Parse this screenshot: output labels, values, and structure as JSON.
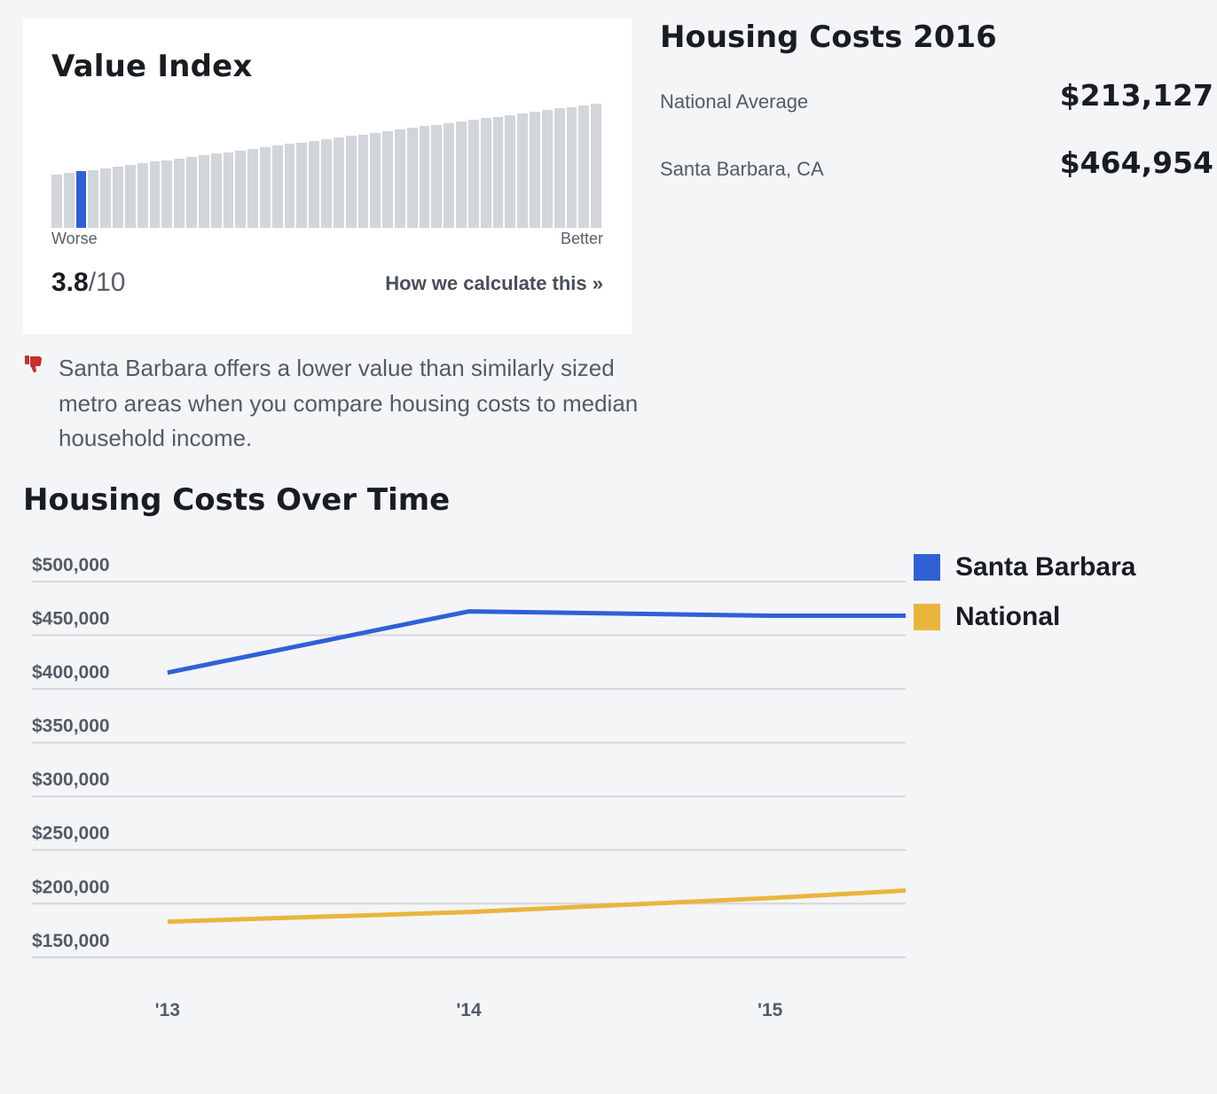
{
  "value_index": {
    "title": "Value Index",
    "scale_low": "Worse",
    "scale_high": "Better",
    "score": "3.8",
    "score_max": "/10",
    "bar_count": 45,
    "active_bar": 3,
    "calc_link": "How we calculate this »",
    "note_icon": "thumbs-down-icon",
    "note": "Santa Barbara offers a lower value than similarly sized metro areas when you compare housing costs to median household income."
  },
  "housing_costs": {
    "title": "Housing Costs 2016",
    "rows": [
      {
        "label": "National Average",
        "value": "$213,127"
      },
      {
        "label": "Santa Barbara, CA",
        "value": "$464,954"
      }
    ]
  },
  "chart_data": {
    "type": "line",
    "title": "Housing Costs Over Time",
    "xlabel": "",
    "ylabel": "",
    "x_ticks": [
      "'13",
      "'14",
      "'15"
    ],
    "x": [
      2013,
      2014,
      2015,
      2015.45
    ],
    "xlim": [
      2012.55,
      2015.45
    ],
    "y_ticks": [
      "$500,000",
      "$450,000",
      "$400,000",
      "$350,000",
      "$300,000",
      "$250,000",
      "$200,000",
      "$150,000"
    ],
    "ylim": [
      135000,
      500000
    ],
    "grid": true,
    "legend_position": "right",
    "series": [
      {
        "name": "Santa Barbara",
        "color": "#2f61d5",
        "values": [
          402000,
          459000,
          455000,
          455000
        ]
      },
      {
        "name": "National",
        "color": "#e8b63c",
        "values": [
          170000,
          179000,
          192000,
          199000
        ]
      }
    ]
  }
}
